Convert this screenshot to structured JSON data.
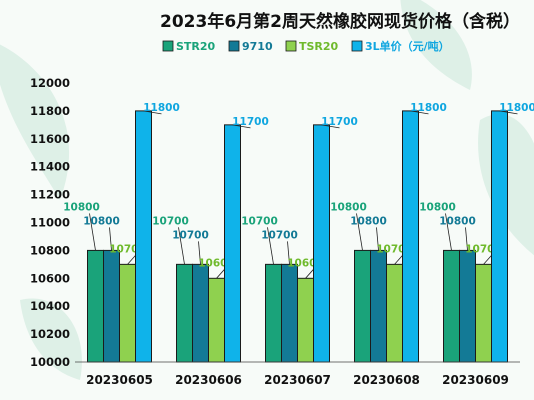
{
  "colors": {
    "background": "#f7fbf8",
    "leaf": "#bfe3d2",
    "bar_stroke": "#1b1b1b",
    "leader": "#222222"
  },
  "chart_data": {
    "type": "bar",
    "title": "2023年6月第2周天然橡胶网现货价格（含税）",
    "categories": [
      "20230605",
      "20230606",
      "20230607",
      "20230608",
      "20230609"
    ],
    "series": [
      {
        "name": "STR20",
        "color": "#1aa37a",
        "label_color": "#1aa37a",
        "values": [
          10800,
          10700,
          10700,
          10800,
          10800
        ]
      },
      {
        "name": "9710",
        "color": "#137a96",
        "label_color": "#137a96",
        "values": [
          10800,
          10700,
          10700,
          10800,
          10800
        ]
      },
      {
        "name": "TSR20",
        "color": "#8fd14f",
        "label_color": "#6fba2c",
        "values": [
          10700,
          10600,
          10600,
          10700,
          10700
        ]
      },
      {
        "name": "3L单价（元/吨）",
        "color": "#0fb3ea",
        "label_color": "#0fa6e0",
        "values": [
          11800,
          11700,
          11700,
          11800,
          11800
        ]
      }
    ],
    "ylim": [
      10000,
      12000
    ],
    "yticks": [
      10000,
      10200,
      10400,
      10600,
      10800,
      11000,
      11200,
      11400,
      11600,
      11800,
      12000
    ],
    "legend": "top",
    "grid": false
  }
}
